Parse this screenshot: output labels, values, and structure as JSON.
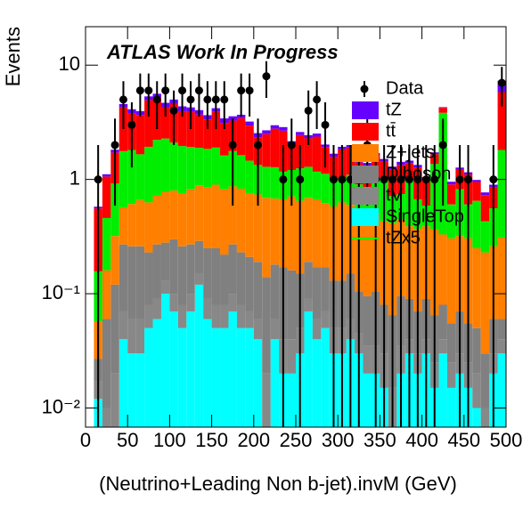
{
  "chart_data": {
    "type": "stacked_histogram",
    "title": "ATLAS Work In Progress",
    "x_label": "(Neutrino+Leading Non b-jet).invM (GeV)",
    "y_label": "Events",
    "log_y": true,
    "bins": [
      0,
      10,
      20,
      30,
      40,
      50,
      60,
      70,
      80,
      90,
      100,
      110,
      120,
      130,
      140,
      150,
      160,
      170,
      180,
      190,
      200,
      210,
      220,
      230,
      240,
      250,
      260,
      270,
      280,
      290,
      300,
      310,
      320,
      330,
      340,
      350,
      360,
      370,
      380,
      390,
      400,
      410,
      420,
      430,
      440,
      450,
      460,
      470,
      480,
      490,
      500
    ],
    "xlim": [
      0,
      500
    ],
    "xticks": [
      0,
      50,
      100,
      150,
      200,
      250,
      300,
      350,
      400,
      450,
      500
    ],
    "ylim": [
      0.0068,
      21.7
    ],
    "yticks": [
      {
        "value": 0.01,
        "label": "10⁻²"
      },
      {
        "value": 0.1,
        "label": "10⁻¹"
      },
      1,
      10
    ],
    "series": [
      {
        "name": "SingleTop",
        "color": "#00ffff",
        "values": [
          0,
          0.012,
          0,
          0,
          0.04,
          0.03,
          0.03,
          0.05,
          0.06,
          0.1,
          0.07,
          0.05,
          0.07,
          0.12,
          0.06,
          0.05,
          0.05,
          0.07,
          0.05,
          0.05,
          0.04,
          0,
          0.04,
          0.02,
          0.02,
          0.03,
          0.07,
          0.04,
          0.05,
          0.03,
          0.03,
          0.04,
          0.03,
          0.02,
          0.02,
          0.015,
          0,
          0.02,
          0.03,
          0.02,
          0.03,
          0.015,
          0.03,
          0.015,
          0.02,
          0.015,
          0.01,
          0,
          0.02,
          0.03
        ]
      },
      {
        "name": "tV",
        "color": "#888888",
        "values": [
          0,
          0.005,
          0.01,
          0.02,
          0.03,
          0.03,
          0.03,
          0.03,
          0.03,
          0.03,
          0.03,
          0.03,
          0.03,
          0.03,
          0.03,
          0.03,
          0.03,
          0.03,
          0.03,
          0.02,
          0.02,
          0.02,
          0.02,
          0.02,
          0.02,
          0.02,
          0.02,
          0.02,
          0.02,
          0.02,
          0.02,
          0.02,
          0.015,
          0.015,
          0.015,
          0.015,
          0.015,
          0.015,
          0.01,
          0.01,
          0.01,
          0.01,
          0.01,
          0.01,
          0.01,
          0.01,
          0.01,
          0.01,
          0.01,
          0.01
        ]
      },
      {
        "name": "Diboson",
        "color": "#808080",
        "values": [
          0,
          0.01,
          0.05,
          0.1,
          0.2,
          0.2,
          0.2,
          0.15,
          0.18,
          0.15,
          0.2,
          0.18,
          0.17,
          0.14,
          0.16,
          0.17,
          0.14,
          0.17,
          0.15,
          0.14,
          0.13,
          0.12,
          0.12,
          0.13,
          0.12,
          0.1,
          0.1,
          0.11,
          0.1,
          0.08,
          0.08,
          0.09,
          0.06,
          0.06,
          0.07,
          0.05,
          0.05,
          0.06,
          0.05,
          0.04,
          0.05,
          0.04,
          0.04,
          0.03,
          0.04,
          0.03,
          0.03,
          0.02,
          0.03,
          0.02
        ]
      },
      {
        "name": "Z+jets",
        "color": "#ff7f00",
        "values": [
          0,
          0.03,
          0.1,
          0.2,
          0.3,
          0.35,
          0.4,
          0.4,
          0.45,
          0.5,
          0.5,
          0.5,
          0.55,
          0.6,
          0.6,
          0.65,
          0.6,
          0.6,
          0.6,
          0.55,
          0.55,
          0.55,
          0.5,
          0.5,
          0.55,
          0.5,
          0.5,
          0.5,
          0.45,
          0.45,
          0.5,
          0.45,
          0.4,
          0.4,
          0.4,
          0.35,
          0.35,
          0.35,
          0.3,
          0.3,
          0.3,
          0.3,
          0.25,
          0.25,
          0.25,
          0.25,
          0.2,
          0.2,
          0.2,
          0.25
        ]
      },
      {
        "name": "tZx5",
        "color": "#00ee00",
        "values": [
          0,
          0.1,
          0.3,
          0.6,
          1.2,
          1.2,
          1.0,
          1.3,
          1.5,
          1.5,
          1.3,
          1.2,
          1.1,
          1.0,
          1.0,
          1.0,
          0.8,
          0.9,
          0.8,
          0.7,
          0.6,
          0.6,
          0.6,
          0.5,
          0.5,
          0.6,
          0.6,
          0.5,
          0.5,
          0.4,
          0.4,
          0.5,
          0.4,
          0.3,
          0.5,
          0.6,
          0.3,
          0.3,
          0.6,
          0.3,
          0.2,
          1.0,
          3.5,
          0.3,
          0.5,
          0.3,
          0.4,
          0.2,
          0.3,
          1.5
        ]
      },
      {
        "name": "tt̄",
        "color": "#ff0000",
        "values": [
          0,
          0.4,
          0.6,
          0.8,
          2.5,
          2,
          2,
          3,
          3,
          2,
          2.5,
          2,
          2,
          1.8,
          1.5,
          2,
          1.5,
          1.5,
          1.8,
          1.5,
          1,
          1.2,
          1.5,
          1.5,
          0.8,
          1.2,
          1,
          1.2,
          0.8,
          0.6,
          0.8,
          0.8,
          0.5,
          0.5,
          0.6,
          0.4,
          0.5,
          0.6,
          0.4,
          0.6,
          0.4,
          0.3,
          0.4,
          0.3,
          0.4,
          0.5,
          0.3,
          0.3,
          0.3,
          4
        ]
      },
      {
        "name": "tZ",
        "color": "#6600ff",
        "values": [
          0,
          0.02,
          0.05,
          0.1,
          0.3,
          0.3,
          0.3,
          0.4,
          0.4,
          0.4,
          0.4,
          0.4,
          0.35,
          0.35,
          0.3,
          0.3,
          0.3,
          0.3,
          0.25,
          0.25,
          0.2,
          0.2,
          0.2,
          0.2,
          0.15,
          0.15,
          0.15,
          0.15,
          0.1,
          0.1,
          0.1,
          0.1,
          0.1,
          0.1,
          0.1,
          0.08,
          0.08,
          0.08,
          0.07,
          0.07,
          0.06,
          0.06,
          0.06,
          0.05,
          0.05,
          0.05,
          0.04,
          0.04,
          0.04,
          1.5
        ]
      }
    ],
    "data": {
      "name": "Data",
      "values": [
        null,
        1,
        null,
        2,
        5,
        3,
        6,
        6,
        5,
        6,
        4,
        6,
        5,
        6,
        5,
        5,
        5,
        2,
        6,
        6,
        2,
        8,
        null,
        1,
        2,
        1,
        4,
        5,
        3,
        1,
        1,
        1,
        1,
        2,
        1,
        1,
        1,
        1,
        1,
        1,
        1,
        1,
        2,
        null,
        1,
        1,
        null,
        null,
        1,
        7
      ],
      "errors": [
        null,
        1,
        null,
        1.41,
        2.24,
        1.73,
        2.45,
        2.45,
        2.24,
        2.45,
        2,
        2.45,
        2.24,
        2.45,
        2.24,
        2.24,
        2.24,
        1.41,
        2.45,
        2.45,
        1.41,
        2.83,
        null,
        1,
        1.41,
        1,
        2,
        2.24,
        1.73,
        1,
        1,
        1,
        1,
        1.41,
        1,
        1,
        1,
        1,
        1,
        1,
        1,
        1,
        1.41,
        null,
        1,
        1,
        null,
        null,
        1,
        2.65
      ]
    }
  }
}
